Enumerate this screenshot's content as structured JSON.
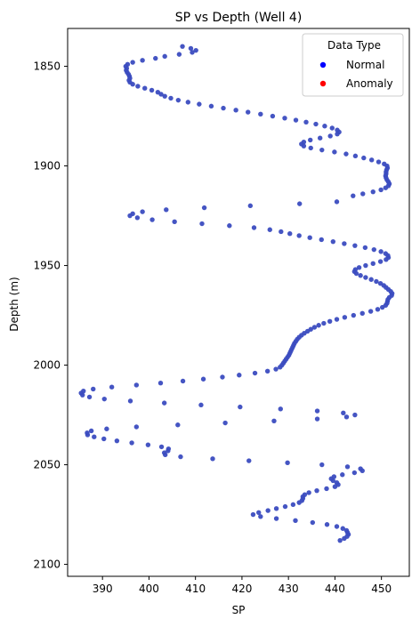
{
  "chart_data": {
    "type": "scatter",
    "title": "SP vs Depth (Well 4)",
    "xlabel": "SP",
    "ylabel": "Depth (m)",
    "xlim": [
      382.5,
      456
    ],
    "ylim": [
      2106,
      1831
    ],
    "y_inverted": true,
    "xticks": [
      390,
      400,
      410,
      420,
      430,
      440,
      450
    ],
    "yticks": [
      1850,
      1900,
      1950,
      2000,
      2050,
      2100
    ],
    "grid": false,
    "legend": {
      "title": "Data Type",
      "placement": "upper-right",
      "entries": [
        {
          "label": "Normal",
          "color": "#0000ff"
        },
        {
          "label": "Anomaly",
          "color": "#ff0000"
        }
      ]
    },
    "colors": {
      "normal_points": "#3b4cc0",
      "anomaly_points": "#ff0000"
    },
    "series": [
      {
        "name": "Normal",
        "points": [
          [
            407.2,
            1840
          ],
          [
            409.0,
            1841
          ],
          [
            410.1,
            1842
          ],
          [
            409.3,
            1843
          ],
          [
            406.5,
            1844
          ],
          [
            403.4,
            1845
          ],
          [
            401.4,
            1846
          ],
          [
            398.6,
            1847
          ],
          [
            396.5,
            1848
          ],
          [
            395.4,
            1849
          ],
          [
            395.0,
            1850
          ],
          [
            395.2,
            1851
          ],
          [
            395.1,
            1852
          ],
          [
            395.3,
            1853
          ],
          [
            395.6,
            1854
          ],
          [
            395.8,
            1855
          ],
          [
            395.9,
            1856
          ],
          [
            395.7,
            1857
          ],
          [
            395.9,
            1858
          ],
          [
            396.5,
            1859
          ],
          [
            397.6,
            1860
          ],
          [
            399.1,
            1861
          ],
          [
            400.6,
            1862
          ],
          [
            401.9,
            1863
          ],
          [
            402.6,
            1864
          ],
          [
            403.4,
            1865
          ],
          [
            404.7,
            1866
          ],
          [
            406.3,
            1867
          ],
          [
            408.4,
            1868
          ],
          [
            410.8,
            1869
          ],
          [
            413.4,
            1870
          ],
          [
            416.0,
            1871
          ],
          [
            418.7,
            1872
          ],
          [
            421.3,
            1873
          ],
          [
            424.0,
            1874
          ],
          [
            426.6,
            1875
          ],
          [
            429.2,
            1876
          ],
          [
            431.6,
            1877
          ],
          [
            433.8,
            1878
          ],
          [
            435.9,
            1879
          ],
          [
            437.8,
            1880
          ],
          [
            439.4,
            1881
          ],
          [
            440.5,
            1882
          ],
          [
            440.9,
            1883
          ],
          [
            440.5,
            1884
          ],
          [
            439.0,
            1885
          ],
          [
            436.8,
            1886
          ],
          [
            434.7,
            1887
          ],
          [
            433.3,
            1888
          ],
          [
            432.8,
            1889
          ],
          [
            433.3,
            1890
          ],
          [
            434.8,
            1891
          ],
          [
            437.2,
            1892
          ],
          [
            439.9,
            1893
          ],
          [
            442.4,
            1894
          ],
          [
            444.4,
            1895
          ],
          [
            446.2,
            1896
          ],
          [
            447.9,
            1897
          ],
          [
            449.4,
            1898
          ],
          [
            450.6,
            1899
          ],
          [
            451.2,
            1900
          ],
          [
            451.3,
            1901
          ],
          [
            451.1,
            1902
          ],
          [
            451.0,
            1903
          ],
          [
            451.0,
            1904
          ],
          [
            450.9,
            1905
          ],
          [
            451.0,
            1906
          ],
          [
            451.2,
            1907
          ],
          [
            451.5,
            1908
          ],
          [
            451.7,
            1909
          ],
          [
            451.5,
            1910
          ],
          [
            450.9,
            1911
          ],
          [
            449.9,
            1912
          ],
          [
            448.2,
            1913
          ],
          [
            446.0,
            1914
          ],
          [
            443.9,
            1915
          ],
          [
            440.4,
            1918
          ],
          [
            432.4,
            1919
          ],
          [
            421.8,
            1920
          ],
          [
            411.9,
            1921
          ],
          [
            403.7,
            1922
          ],
          [
            398.6,
            1923
          ],
          [
            396.5,
            1924
          ],
          [
            395.9,
            1925
          ],
          [
            397.5,
            1926
          ],
          [
            400.7,
            1927
          ],
          [
            405.5,
            1928
          ],
          [
            411.4,
            1929
          ],
          [
            417.3,
            1930
          ],
          [
            422.6,
            1931
          ],
          [
            426.0,
            1932
          ],
          [
            428.4,
            1933
          ],
          [
            430.3,
            1934
          ],
          [
            432.3,
            1935
          ],
          [
            434.6,
            1936
          ],
          [
            437.1,
            1937
          ],
          [
            439.6,
            1938
          ],
          [
            442.0,
            1939
          ],
          [
            444.3,
            1940
          ],
          [
            446.5,
            1941
          ],
          [
            448.4,
            1942
          ],
          [
            449.9,
            1943
          ],
          [
            450.9,
            1944
          ],
          [
            451.4,
            1945
          ],
          [
            451.5,
            1946
          ],
          [
            451.0,
            1947
          ],
          [
            449.8,
            1948
          ],
          [
            448.2,
            1949
          ],
          [
            446.6,
            1950
          ],
          [
            445.2,
            1951
          ],
          [
            444.4,
            1952
          ],
          [
            444.2,
            1953
          ],
          [
            444.6,
            1954
          ],
          [
            445.5,
            1955
          ],
          [
            446.6,
            1956
          ],
          [
            447.8,
            1957
          ],
          [
            448.9,
            1958
          ],
          [
            449.8,
            1959
          ],
          [
            450.5,
            1960
          ],
          [
            451.0,
            1961
          ],
          [
            451.5,
            1962
          ],
          [
            452.0,
            1963
          ],
          [
            452.3,
            1964
          ],
          [
            452.2,
            1965
          ],
          [
            451.7,
            1966
          ],
          [
            451.4,
            1967
          ],
          [
            451.3,
            1968
          ],
          [
            451.2,
            1969
          ],
          [
            450.9,
            1970
          ],
          [
            450.2,
            1971
          ],
          [
            449.2,
            1972
          ],
          [
            447.7,
            1973
          ],
          [
            445.9,
            1974
          ],
          [
            444.0,
            1975
          ],
          [
            442.1,
            1976
          ],
          [
            440.4,
            1977
          ],
          [
            438.9,
            1978
          ],
          [
            437.6,
            1979
          ],
          [
            436.5,
            1980
          ],
          [
            435.6,
            1981
          ],
          [
            434.8,
            1982
          ],
          [
            434.1,
            1983
          ],
          [
            433.4,
            1984
          ],
          [
            432.8,
            1985
          ],
          [
            432.3,
            1986
          ],
          [
            431.9,
            1987
          ],
          [
            431.6,
            1988
          ],
          [
            431.3,
            1989
          ],
          [
            431.1,
            1990
          ],
          [
            430.9,
            1991
          ],
          [
            430.7,
            1992
          ],
          [
            430.5,
            1993
          ],
          [
            430.3,
            1994
          ],
          [
            430.1,
            1995
          ],
          [
            429.8,
            1996
          ],
          [
            429.5,
            1997
          ],
          [
            429.2,
            1998
          ],
          [
            428.9,
            1999
          ],
          [
            428.6,
            2000
          ],
          [
            428.2,
            2001
          ],
          [
            427.3,
            2002
          ],
          [
            425.5,
            2003
          ],
          [
            422.8,
            2004
          ],
          [
            419.4,
            2005
          ],
          [
            415.8,
            2006
          ],
          [
            411.7,
            2007
          ],
          [
            407.3,
            2008
          ],
          [
            402.5,
            2009
          ],
          [
            397.3,
            2010
          ],
          [
            392.0,
            2011
          ],
          [
            388.0,
            2012
          ],
          [
            385.9,
            2013
          ],
          [
            385.4,
            2014
          ],
          [
            385.7,
            2015
          ],
          [
            387.2,
            2016
          ],
          [
            390.4,
            2017
          ],
          [
            396.0,
            2018
          ],
          [
            403.3,
            2019
          ],
          [
            411.2,
            2020
          ],
          [
            419.6,
            2021
          ],
          [
            428.3,
            2022
          ],
          [
            436.2,
            2023
          ],
          [
            441.8,
            2024
          ],
          [
            444.3,
            2025
          ],
          [
            442.5,
            2026
          ],
          [
            436.2,
            2027
          ],
          [
            426.9,
            2028
          ],
          [
            416.4,
            2029
          ],
          [
            406.2,
            2030
          ],
          [
            397.3,
            2031
          ],
          [
            390.9,
            2032
          ],
          [
            387.6,
            2033
          ],
          [
            386.7,
            2034
          ],
          [
            386.8,
            2035
          ],
          [
            388.2,
            2036
          ],
          [
            390.3,
            2037
          ],
          [
            393.1,
            2038
          ],
          [
            396.3,
            2039
          ],
          [
            399.8,
            2040
          ],
          [
            402.7,
            2041
          ],
          [
            404.2,
            2042
          ],
          [
            404.1,
            2043
          ],
          [
            403.3,
            2044
          ],
          [
            403.5,
            2045
          ],
          [
            406.8,
            2046
          ],
          [
            413.7,
            2047
          ],
          [
            421.5,
            2048
          ],
          [
            429.8,
            2049
          ],
          [
            437.2,
            2050
          ],
          [
            442.7,
            2051
          ],
          [
            445.5,
            2052
          ],
          [
            445.9,
            2053
          ],
          [
            444.2,
            2054
          ],
          [
            441.6,
            2055
          ],
          [
            439.8,
            2056
          ],
          [
            439.2,
            2057
          ],
          [
            439.6,
            2058
          ],
          [
            440.4,
            2059
          ],
          [
            440.7,
            2060
          ],
          [
            440.0,
            2061
          ],
          [
            438.2,
            2062
          ],
          [
            436.1,
            2063
          ],
          [
            434.4,
            2064
          ],
          [
            433.5,
            2065
          ],
          [
            433.1,
            2066
          ],
          [
            433.1,
            2067
          ],
          [
            432.9,
            2068
          ],
          [
            432.3,
            2069
          ],
          [
            431.0,
            2070
          ],
          [
            429.3,
            2071
          ],
          [
            427.4,
            2072
          ],
          [
            425.6,
            2073
          ],
          [
            423.6,
            2074
          ],
          [
            422.4,
            2075
          ],
          [
            424.0,
            2076
          ],
          [
            427.4,
            2077
          ],
          [
            431.5,
            2078
          ],
          [
            435.2,
            2079
          ],
          [
            438.3,
            2080
          ],
          [
            440.4,
            2081
          ],
          [
            441.7,
            2082
          ],
          [
            442.5,
            2083
          ],
          [
            442.7,
            2084
          ],
          [
            442.9,
            2085
          ],
          [
            442.6,
            2086
          ],
          [
            442.0,
            2087
          ],
          [
            441.1,
            2088
          ]
        ]
      },
      {
        "name": "Anomaly",
        "points": []
      }
    ]
  }
}
